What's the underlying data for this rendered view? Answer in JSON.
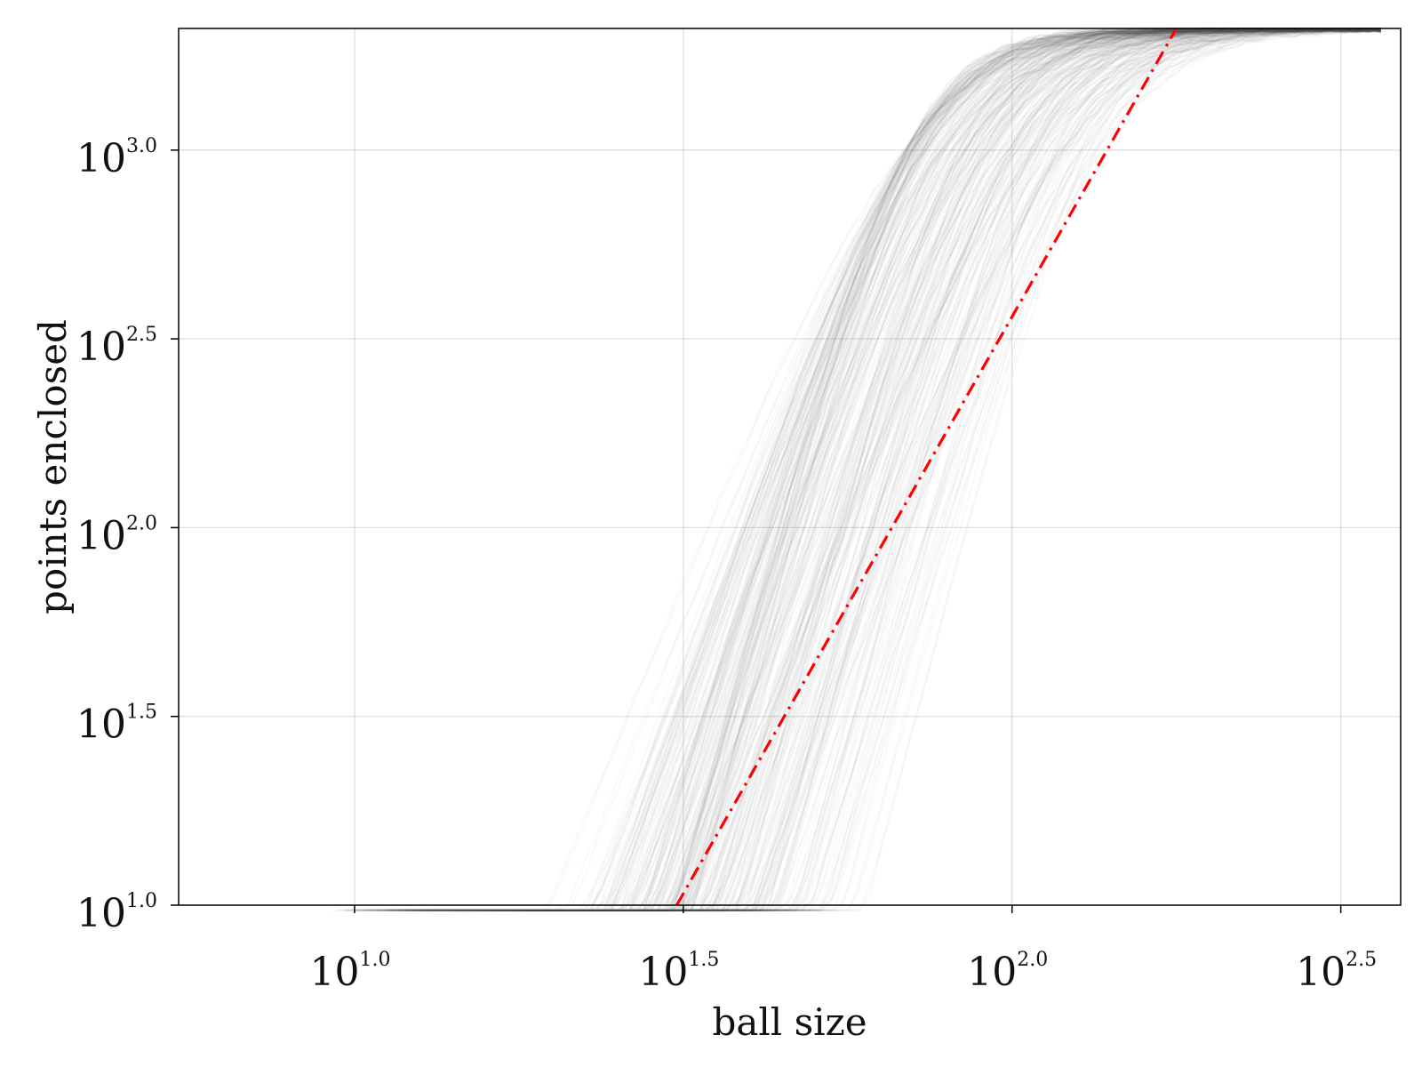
{
  "chart_data": {
    "type": "line",
    "title": "",
    "xlabel": "ball size",
    "ylabel": "points enclosed",
    "xscale": "log",
    "yscale": "log",
    "xlim": [
      5.4,
      390
    ],
    "ylim": [
      10,
      2100
    ],
    "grid": true,
    "legend": "none",
    "x_ticks": [
      {
        "value": 10,
        "base": "10",
        "exp": "1.0"
      },
      {
        "value": 31.62,
        "base": "10",
        "exp": "1.5"
      },
      {
        "value": 100,
        "base": "10",
        "exp": "2.0"
      },
      {
        "value": 316.2,
        "base": "10",
        "exp": "2.5"
      }
    ],
    "y_ticks": [
      {
        "value": 10,
        "base": "10",
        "exp": "1.0"
      },
      {
        "value": 31.62,
        "base": "10",
        "exp": "1.5"
      },
      {
        "value": 100,
        "base": "10",
        "exp": "2.0"
      },
      {
        "value": 316.2,
        "base": "10",
        "exp": "2.5"
      },
      {
        "value": 1000,
        "base": "10",
        "exp": "3.0"
      }
    ],
    "curve_family": {
      "style": "many thin translucent gray lines",
      "color": "#555555",
      "sigmoid_center_ball_size": {
        "min": 70,
        "max": 140
      },
      "lower_start_ball_size": {
        "min": 16,
        "max": 60
      },
      "saturation_points": 2100,
      "count_estimate": 300
    },
    "reference_line": {
      "style": "dash-dot",
      "color": "#ff0000",
      "x": [
        30.9,
        177.8
      ],
      "y": [
        10,
        2100
      ]
    }
  }
}
